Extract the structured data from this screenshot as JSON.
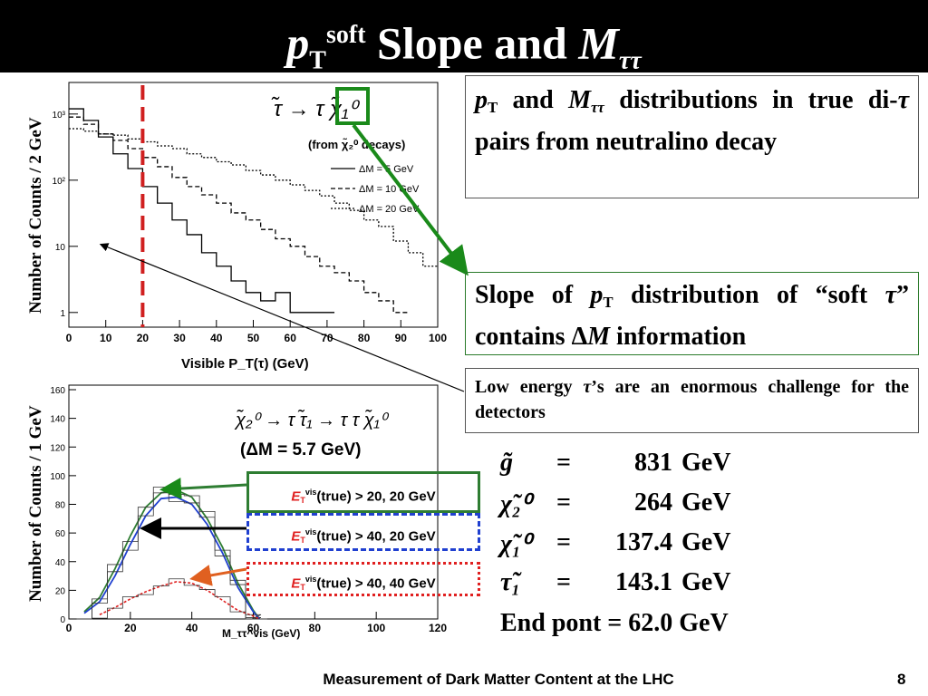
{
  "title": {
    "p": "p",
    "t": "T",
    "soft": "soft",
    "mid": " Slope and ",
    "m": "M",
    "tautau": "ττ"
  },
  "box1": {
    "p": "p",
    "t": "T",
    "and": " and ",
    "m": "M",
    "tt": "ττ",
    "rest": " distributions in true di-",
    "tau": "τ",
    "rest2": " pairs from neutralino decay"
  },
  "box2": {
    "a": "Slope of ",
    "p": "p",
    "t": "T",
    "b": " distribution of “soft ",
    "tau": "τ",
    "c": "” contains Δ",
    "m": "M",
    "d": " information"
  },
  "box3": {
    "a": "Low energy ",
    "tau": "τ",
    "b": "’s are an enormous challenge for the detectors"
  },
  "legend": [
    {
      "e": "E",
      "t": "T",
      "vis": "vis",
      "text": "(true) > 20, 20 GeV",
      "color": "#2e7d32"
    },
    {
      "e": "E",
      "t": "T",
      "vis": "vis",
      "text": "(true) > 40, 20 GeV",
      "color": "#2040d0"
    },
    {
      "e": "E",
      "t": "T",
      "vis": "vis",
      "text": "(true) > 40, 40 GeV",
      "color": "#e02020"
    }
  ],
  "masses": [
    {
      "sym": "g̃",
      "eq": "=",
      "val": "831",
      "unit": "GeV"
    },
    {
      "sym": "χ̃₂⁰",
      "eq": "=",
      "val": "264",
      "unit": "GeV"
    },
    {
      "sym": "χ̃₁⁰",
      "eq": "=",
      "val": "137.4",
      "unit": "GeV"
    },
    {
      "sym": "τ̃₁",
      "eq": "=",
      "val": "143.1",
      "unit": "GeV"
    }
  ],
  "endpoint": "End pont = 62.0 GeV",
  "footer": "Measurement of Dark Matter Content at the LHC",
  "page_number": "8",
  "ylabel_top": "Number of Counts / 2 GeV",
  "ylabel_bottom": "Number of Counts / 1 GeV",
  "chart_data": [
    {
      "type": "line",
      "xlabel": "Visible P_T(τ) (GeV)",
      "x_ticks": [
        "0",
        "10",
        "20",
        "30",
        "40",
        "50",
        "60",
        "70",
        "80",
        "90",
        "100"
      ],
      "y_ticks": [
        "1",
        "10",
        "10²",
        "10³"
      ],
      "yscale": "log",
      "xlim": [
        0,
        100
      ],
      "decay_label": "τ̃ → τ χ̃₁⁰",
      "sub_label": "(from χ̃₂⁰ decays)",
      "cut_x": 20,
      "series": [
        {
          "name": "ΔM = 5 GeV",
          "style": "solid",
          "x": [
            2,
            6,
            10,
            14,
            18,
            22,
            26,
            30,
            34,
            38,
            42,
            46,
            50,
            54,
            58,
            62,
            66,
            70
          ],
          "y": [
            1200,
            800,
            450,
            250,
            150,
            80,
            45,
            25,
            15,
            8,
            5,
            3,
            2,
            1.5,
            2,
            1,
            1,
            1
          ]
        },
        {
          "name": "ΔM = 10 GeV",
          "style": "dashed",
          "x": [
            2,
            6,
            10,
            14,
            18,
            22,
            26,
            30,
            34,
            38,
            42,
            46,
            50,
            54,
            58,
            62,
            66,
            70,
            74,
            78,
            82,
            86,
            90
          ],
          "y": [
            900,
            700,
            500,
            400,
            300,
            220,
            160,
            110,
            80,
            60,
            45,
            32,
            25,
            18,
            13,
            10,
            7,
            5,
            4,
            3,
            2,
            1.5,
            1
          ]
        },
        {
          "name": "ΔM = 20 GeV",
          "style": "dotted",
          "x": [
            2,
            6,
            10,
            14,
            18,
            22,
            26,
            30,
            34,
            38,
            42,
            46,
            50,
            54,
            58,
            62,
            66,
            70,
            74,
            78,
            82,
            86,
            90,
            94,
            98
          ],
          "y": [
            600,
            550,
            500,
            480,
            420,
            380,
            330,
            300,
            250,
            220,
            190,
            170,
            140,
            120,
            100,
            85,
            70,
            58,
            45,
            35,
            25,
            20,
            12,
            8,
            5
          ]
        }
      ]
    },
    {
      "type": "line",
      "xlabel": "M_ττ^vis (GeV)",
      "x_ticks": [
        "0",
        "20",
        "40",
        "60",
        "80",
        "100",
        "120"
      ],
      "y_ticks": [
        "0",
        "20",
        "40",
        "60",
        "80",
        "100",
        "120",
        "140",
        "160"
      ],
      "xlim": [
        0,
        120
      ],
      "ylim": [
        0,
        160
      ],
      "decay_label": "χ̃₂⁰ → τ τ̃₁ → τ τ χ̃₁⁰",
      "dm_label": "(ΔM = 5.7 GeV)",
      "series": [
        {
          "name": "E_T^vis(true) > 20, 20 GeV",
          "color": "#2e7d32",
          "x": [
            5,
            10,
            15,
            20,
            25,
            30,
            35,
            40,
            45,
            50,
            55,
            60,
            62
          ],
          "y": [
            5,
            15,
            35,
            58,
            78,
            88,
            90,
            85,
            70,
            50,
            25,
            6,
            0
          ]
        },
        {
          "name": "E_T^vis(true) > 40, 20 GeV",
          "color": "#2040d0",
          "x": [
            5,
            10,
            15,
            20,
            25,
            30,
            35,
            40,
            45,
            50,
            55,
            60,
            62
          ],
          "y": [
            4,
            12,
            30,
            52,
            72,
            84,
            85,
            80,
            66,
            46,
            22,
            5,
            0
          ]
        },
        {
          "name": "E_T^vis(true) > 40, 40 GeV",
          "color": "#e02020",
          "x": [
            10,
            15,
            20,
            25,
            30,
            35,
            40,
            45,
            50,
            55,
            60,
            62
          ],
          "y": [
            3,
            8,
            14,
            19,
            23,
            26,
            25,
            20,
            13,
            6,
            2,
            0
          ]
        }
      ]
    }
  ]
}
